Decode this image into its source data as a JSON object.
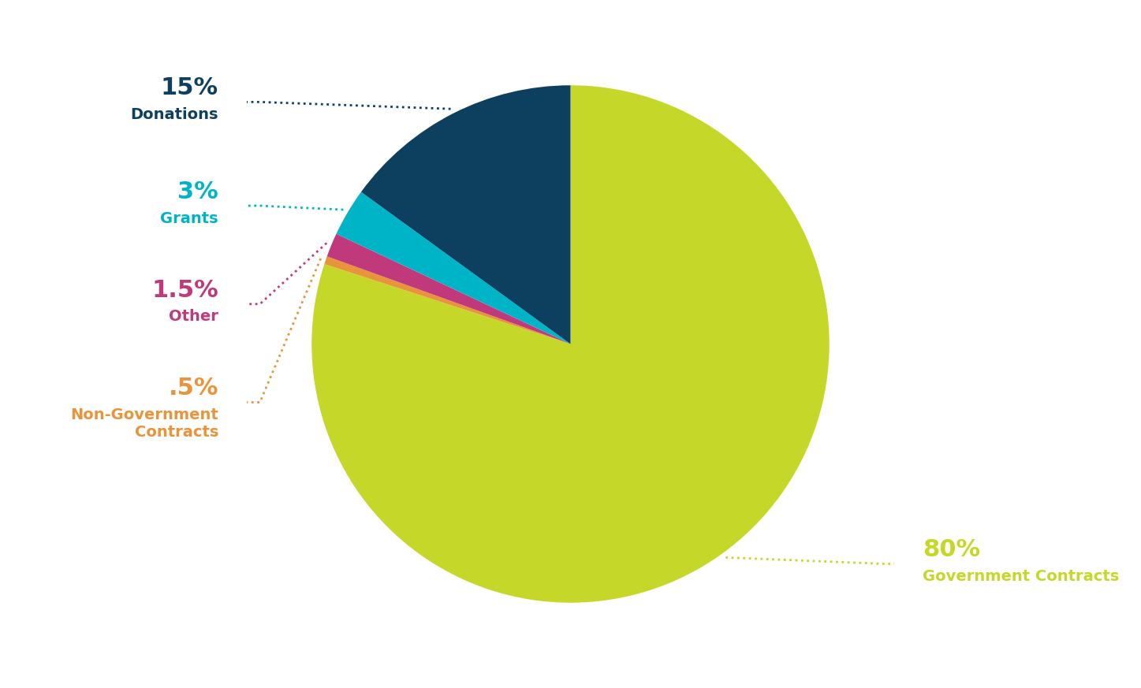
{
  "chart_data": {
    "type": "pie",
    "categories": [
      "Government Contracts",
      "Non-Government\nContracts",
      "Other",
      "Grants",
      "Donations"
    ],
    "values": [
      80,
      0.5,
      1.5,
      3,
      15
    ],
    "value_labels": [
      "80%",
      ".5%",
      "1.5%",
      "3%",
      "15%"
    ],
    "colors": [
      "#c5d829",
      "#e8943a",
      "#c0397b",
      "#00b4c8",
      "#0d3f5f"
    ],
    "data_labels": true
  }
}
